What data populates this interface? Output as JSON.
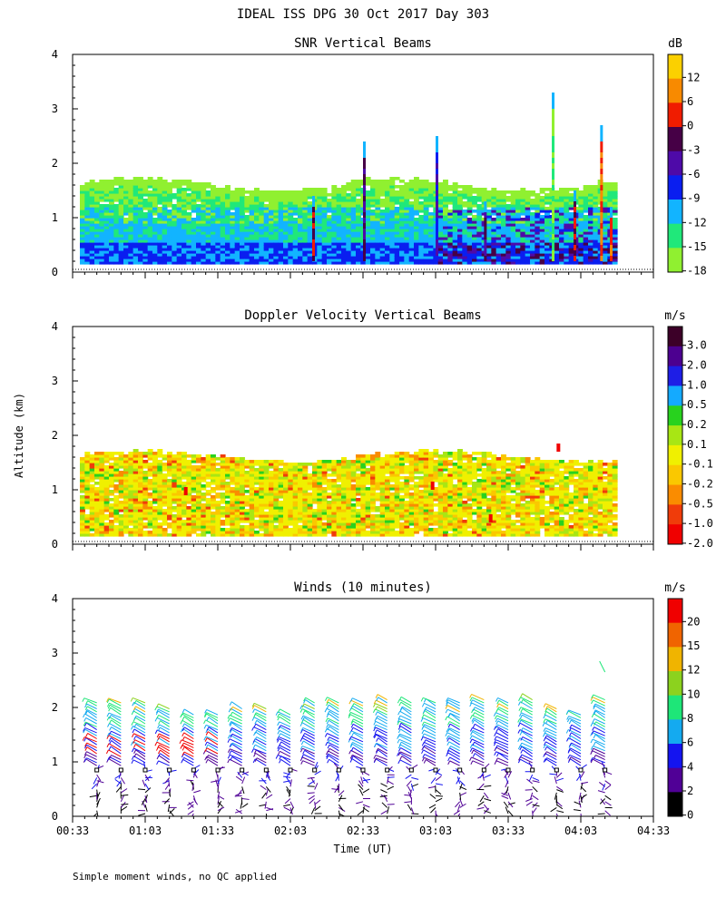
{
  "title": "IDEAL ISS DPG  30 Oct 2017 Day 303",
  "footer": "Simple moment winds, no QC applied",
  "time_axis": {
    "label": "Time (UT)",
    "ticks": [
      "00:33",
      "01:03",
      "01:33",
      "02:03",
      "02:33",
      "03:03",
      "03:33",
      "04:03",
      "04:33"
    ]
  },
  "altitude_axis": {
    "label": "Altitude (km)",
    "ticks": [
      "0",
      "1",
      "2",
      "3",
      "4"
    ]
  },
  "chart_data": [
    {
      "type": "heatmap",
      "title": "SNR Vertical Beams",
      "xlabel": "Time (UT)",
      "ylabel": "Altitude (km)",
      "ylim": [
        0,
        4
      ],
      "x_range": [
        "00:33",
        "04:33"
      ],
      "colorbar": {
        "unit": "dB",
        "labels": [
          "12",
          "6",
          "0",
          "-3",
          "-6",
          "-9",
          "-12",
          "-15",
          "-18"
        ],
        "colors": [
          "#fbd000",
          "#f88a00",
          "#f01c00",
          "#460046",
          "#4e0aa8",
          "#0a1ef0",
          "#12b4ff",
          "#20e87a",
          "#90f030"
        ]
      },
      "summary": {
        "layer_top_km": 1.6,
        "layer_bottom_km": 0.15,
        "strong_echo_streaks_km": [
          2.4,
          2.5,
          3.3,
          2.7
        ]
      }
    },
    {
      "type": "heatmap",
      "title": "Doppler Velocity Vertical Beams",
      "xlabel": "Time (UT)",
      "ylabel": "Altitude (km)",
      "ylim": [
        0,
        4
      ],
      "x_range": [
        "00:33",
        "04:33"
      ],
      "colorbar": {
        "unit": "m/s",
        "labels": [
          "3.0",
          "2.0",
          "1.0",
          "0.5",
          "0.2",
          "0.1",
          "-0.1",
          "-0.2",
          "-0.5",
          "-1.0",
          "-2.0"
        ],
        "colors": [
          "#3c0028",
          "#4c0090",
          "#1e1ee6",
          "#14aaff",
          "#28d21e",
          "#a8e614",
          "#f0f000",
          "#fac800",
          "#fa8c00",
          "#f03c0a",
          "#f00000"
        ]
      },
      "summary": {
        "layer_top_km": 1.6,
        "dominant_range": "-0.1 to 0.1"
      }
    },
    {
      "type": "scatter",
      "title": "Winds (10 minutes)",
      "xlabel": "Time (UT)",
      "ylabel": "Altitude (km)",
      "ylim": [
        0,
        4
      ],
      "x_range": [
        "00:33",
        "04:33"
      ],
      "colorbar": {
        "unit": "m/s",
        "labels": [
          "20",
          "15",
          "12",
          "10",
          "8",
          "6",
          "4",
          "2",
          "0"
        ],
        "colors": [
          "#f00000",
          "#f06400",
          "#f0b400",
          "#8cd21e",
          "#1ee678",
          "#14aaf0",
          "#1414f0",
          "#500096",
          "#000000"
        ]
      },
      "profile_times_min": [
        10,
        20,
        30,
        40,
        50,
        60,
        70,
        80,
        90,
        100,
        110,
        120,
        130,
        140,
        150,
        160,
        170,
        180,
        190,
        200,
        210,
        220
      ],
      "profile_tops_km": [
        2.1,
        2.1,
        2.1,
        2.0,
        1.9,
        1.9,
        2.0,
        2.0,
        1.9,
        2.1,
        2.1,
        2.1,
        2.2,
        2.1,
        2.1,
        2.1,
        2.2,
        2.1,
        2.2,
        2.0,
        1.9,
        2.8
      ]
    }
  ]
}
